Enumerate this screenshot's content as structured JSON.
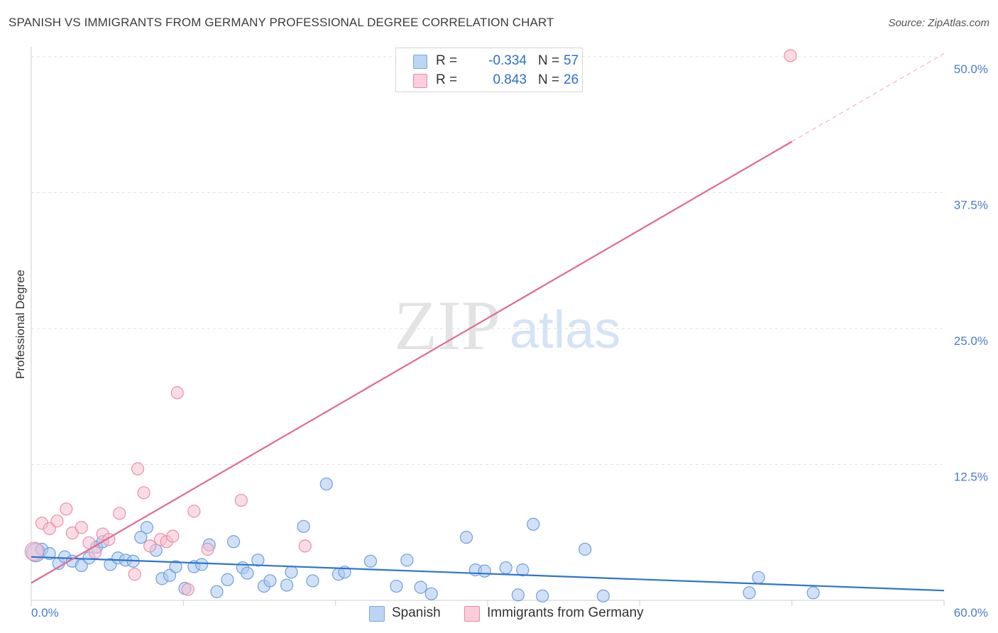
{
  "title": "SPANISH VS IMMIGRANTS FROM GERMANY PROFESSIONAL DEGREE CORRELATION CHART",
  "source": "Source: ZipAtlas.com",
  "watermark": {
    "zip": "ZIP",
    "atlas": "atlas"
  },
  "legend": {
    "rows": [
      {
        "r_label": "R =",
        "r_value": "-0.334",
        "n_label": "N =",
        "n_value": "57",
        "color": "#a9c8f0",
        "border": "#7aa6de"
      },
      {
        "r_label": "R =",
        "r_value": "0.843",
        "n_label": "N =",
        "n_value": "26",
        "color": "#f7c0d0",
        "border": "#e88aa8"
      }
    ]
  },
  "bottom_legend": [
    "Spanish",
    "Immigrants from Germany"
  ],
  "chart_data": {
    "type": "scatter",
    "title": "SPANISH VS IMMIGRANTS FROM GERMANY PROFESSIONAL DEGREE CORRELATION CHART",
    "xlabel": "",
    "ylabel": "Professional Degree",
    "xlim": [
      0,
      60
    ],
    "ylim": [
      0,
      50
    ],
    "x_tick_labels": [
      "0.0%",
      "60.0%"
    ],
    "y_ticks": [
      12.5,
      25.0,
      37.5,
      50.0
    ],
    "y_tick_labels": [
      "12.5%",
      "25.0%",
      "37.5%",
      "50.0%"
    ],
    "grid": true,
    "legend_position": "top-center",
    "series": [
      {
        "name": "Spanish",
        "color": "#a9c8f0",
        "stroke": "#6f9fdc",
        "trend": {
          "x": [
            0,
            60
          ],
          "y": [
            4.0,
            0.9
          ],
          "color": "#2f74d0"
        },
        "points": [
          [
            0.3,
            4.4
          ],
          [
            0.7,
            4.7
          ],
          [
            1.2,
            4.3
          ],
          [
            1.8,
            3.4
          ],
          [
            2.2,
            4.0
          ],
          [
            2.7,
            3.6
          ],
          [
            3.3,
            3.2
          ],
          [
            3.8,
            3.9
          ],
          [
            4.3,
            4.9
          ],
          [
            4.7,
            5.4
          ],
          [
            5.2,
            3.3
          ],
          [
            5.7,
            3.9
          ],
          [
            6.2,
            3.7
          ],
          [
            6.7,
            3.6
          ],
          [
            7.2,
            5.8
          ],
          [
            7.6,
            6.7
          ],
          [
            8.2,
            4.6
          ],
          [
            8.6,
            2.0
          ],
          [
            9.1,
            2.3
          ],
          [
            9.5,
            3.1
          ],
          [
            10.1,
            1.1
          ],
          [
            10.7,
            3.1
          ],
          [
            11.2,
            3.3
          ],
          [
            11.7,
            5.1
          ],
          [
            12.2,
            0.8
          ],
          [
            12.9,
            1.9
          ],
          [
            13.3,
            5.4
          ],
          [
            13.9,
            3.0
          ],
          [
            14.2,
            2.5
          ],
          [
            14.9,
            3.7
          ],
          [
            15.3,
            1.3
          ],
          [
            15.7,
            1.8
          ],
          [
            16.8,
            1.4
          ],
          [
            17.1,
            2.6
          ],
          [
            17.9,
            6.8
          ],
          [
            18.5,
            1.8
          ],
          [
            19.4,
            10.7
          ],
          [
            20.2,
            2.4
          ],
          [
            20.6,
            2.6
          ],
          [
            22.3,
            3.6
          ],
          [
            24.0,
            1.3
          ],
          [
            24.7,
            3.7
          ],
          [
            25.6,
            1.2
          ],
          [
            26.3,
            0.6
          ],
          [
            28.6,
            5.8
          ],
          [
            29.2,
            2.8
          ],
          [
            29.8,
            2.7
          ],
          [
            31.2,
            3.0
          ],
          [
            32.0,
            0.5
          ],
          [
            32.3,
            2.8
          ],
          [
            33.0,
            7.0
          ],
          [
            33.6,
            0.4
          ],
          [
            36.4,
            4.7
          ],
          [
            37.6,
            0.4
          ],
          [
            47.2,
            0.7
          ],
          [
            47.8,
            2.1
          ],
          [
            51.4,
            0.7
          ]
        ]
      },
      {
        "name": "Immigrants from Germany",
        "color": "#f7c0d0",
        "stroke": "#e890ab",
        "trend": {
          "x": [
            0,
            50
          ],
          "y": [
            1.6,
            42.2
          ],
          "dashed_to": [
            60,
            50.3
          ],
          "color": "#e06a92"
        },
        "points": [
          [
            0.2,
            4.5
          ],
          [
            0.7,
            7.1
          ],
          [
            1.2,
            6.6
          ],
          [
            1.7,
            7.3
          ],
          [
            2.3,
            8.4
          ],
          [
            2.7,
            6.2
          ],
          [
            3.3,
            6.7
          ],
          [
            3.8,
            5.3
          ],
          [
            4.2,
            4.4
          ],
          [
            4.7,
            6.1
          ],
          [
            5.1,
            5.6
          ],
          [
            5.8,
            8.0
          ],
          [
            6.8,
            2.4
          ],
          [
            7.0,
            12.1
          ],
          [
            7.4,
            9.9
          ],
          [
            7.8,
            5.0
          ],
          [
            8.5,
            5.6
          ],
          [
            8.9,
            5.4
          ],
          [
            9.3,
            5.9
          ],
          [
            9.6,
            19.1
          ],
          [
            10.3,
            1.0
          ],
          [
            10.7,
            8.2
          ],
          [
            11.6,
            4.7
          ],
          [
            13.8,
            9.2
          ],
          [
            18.0,
            5.0
          ],
          [
            49.9,
            50.1
          ]
        ]
      }
    ]
  }
}
